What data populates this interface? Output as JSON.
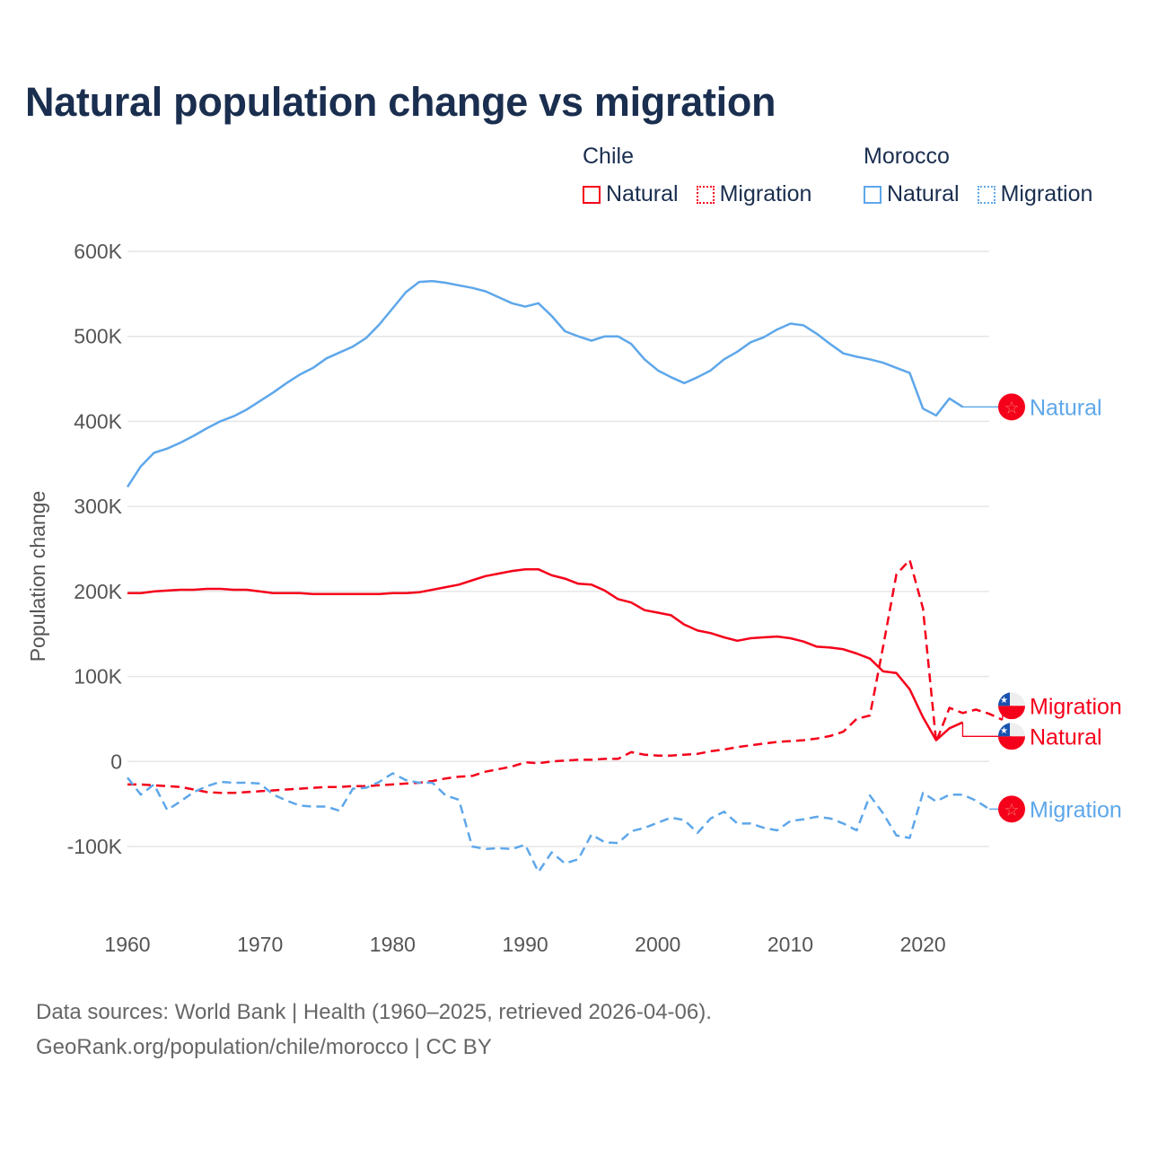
{
  "chart_data": {
    "type": "line",
    "title": "Natural population change vs migration",
    "xlabel": "",
    "ylabel": "Population change",
    "xlim": [
      1960,
      2025
    ],
    "ylim": [
      -100000,
      600000
    ],
    "x_ticks": [
      1960,
      1970,
      1980,
      1990,
      2000,
      2010,
      2020
    ],
    "x_tick_labels": [
      "1960",
      "1970",
      "1980",
      "1990",
      "2000",
      "2010",
      "2020"
    ],
    "y_ticks": [
      -100000,
      0,
      100000,
      200000,
      300000,
      400000,
      500000,
      600000
    ],
    "y_tick_labels": [
      "-100K",
      "0",
      "100K",
      "200K",
      "300K",
      "400K",
      "500K",
      "600K"
    ],
    "grid": true,
    "legend_placement": "top-right",
    "legend": {
      "groups": [
        {
          "name": "Chile",
          "items": [
            "Natural",
            "Migration"
          ]
        },
        {
          "name": "Morocco",
          "items": [
            "Natural",
            "Migration"
          ]
        }
      ]
    },
    "colors": {
      "Chile": "#f5001a",
      "Morocco": "#5ea7ea"
    },
    "series": [
      {
        "name": "Morocco Natural",
        "country": "Morocco",
        "kind": "Natural",
        "dash": "solid",
        "end_label": "Natural",
        "flag": "morocco",
        "start_year": 1960,
        "values": [
          323,
          347,
          363,
          368,
          375,
          383,
          392,
          400,
          406,
          414,
          424,
          434,
          445,
          455,
          463,
          474,
          481,
          488,
          498,
          514,
          533,
          552,
          564,
          565,
          563,
          560,
          557,
          553,
          546,
          539,
          535,
          539,
          524,
          506,
          500,
          495,
          500,
          500,
          491,
          473,
          460,
          452,
          445,
          452,
          460,
          473,
          482,
          493,
          499,
          508,
          515,
          513,
          503,
          491,
          480,
          476,
          473,
          469,
          463,
          457,
          415,
          407,
          427,
          417
        ]
      },
      {
        "name": "Chile Natural",
        "country": "Chile",
        "kind": "Natural",
        "dash": "solid",
        "end_label": "Natural",
        "flag": "chile",
        "start_year": 1960,
        "values": [
          198,
          198,
          200,
          201,
          202,
          202,
          203,
          203,
          202,
          202,
          200,
          198,
          198,
          198,
          197,
          197,
          197,
          197,
          197,
          197,
          198,
          198,
          199,
          202,
          205,
          208,
          213,
          218,
          221,
          224,
          226,
          226,
          219,
          215,
          209,
          208,
          201,
          191,
          187,
          178,
          175,
          172,
          161,
          154,
          151,
          146,
          142,
          145,
          146,
          147,
          145,
          141,
          135,
          134,
          132,
          127,
          121,
          106,
          104,
          85,
          52,
          25,
          39,
          46
        ]
      },
      {
        "name": "Chile Migration",
        "country": "Chile",
        "kind": "Migration",
        "dash": "dashed",
        "end_label": "Migration",
        "flag": "chile",
        "start_year": 1960,
        "values": [
          -27,
          -27,
          -28,
          -29,
          -30,
          -33,
          -36,
          -37,
          -37,
          -36,
          -35,
          -34,
          -33,
          -32,
          -31,
          -30,
          -30,
          -29,
          -29,
          -28,
          -27,
          -26,
          -25,
          -23,
          -20,
          -18,
          -17,
          -12,
          -9,
          -6,
          -1,
          -2,
          0,
          1,
          2,
          2,
          3,
          3,
          11,
          8,
          7,
          7,
          8,
          9,
          12,
          14,
          17,
          19,
          21,
          23,
          24,
          25,
          27,
          30,
          35,
          50,
          54,
          135,
          220,
          237,
          180,
          23,
          63,
          57,
          61,
          56,
          49
        ]
      },
      {
        "name": "Morocco Migration",
        "country": "Morocco",
        "kind": "Migration",
        "dash": "dashed",
        "end_label": "Migration",
        "flag": "morocco",
        "start_year": 1960,
        "values": [
          -19,
          -39,
          -27,
          -57,
          -47,
          -36,
          -29,
          -24,
          -25,
          -25,
          -26,
          -39,
          -46,
          -52,
          -53,
          -53,
          -58,
          -32,
          -31,
          -24,
          -14,
          -22,
          -25,
          -25,
          -40,
          -45,
          -100,
          -103,
          -102,
          -103,
          -98,
          -130,
          -107,
          -120,
          -115,
          -86,
          -95,
          -96,
          -82,
          -78,
          -72,
          -66,
          -69,
          -84,
          -67,
          -59,
          -73,
          -73,
          -78,
          -81,
          -70,
          -68,
          -65,
          -67,
          -73,
          -81,
          -40,
          -61,
          -87,
          -90,
          -37,
          -47,
          -39,
          -39,
          -46,
          -56
        ]
      }
    ],
    "value_unit": "thousands"
  },
  "footer": {
    "line1": "Data sources: World Bank | Health (1960–2025, retrieved 2026-04-06).",
    "line2": "GeoRank.org/population/chile/morocco | CC BY"
  }
}
